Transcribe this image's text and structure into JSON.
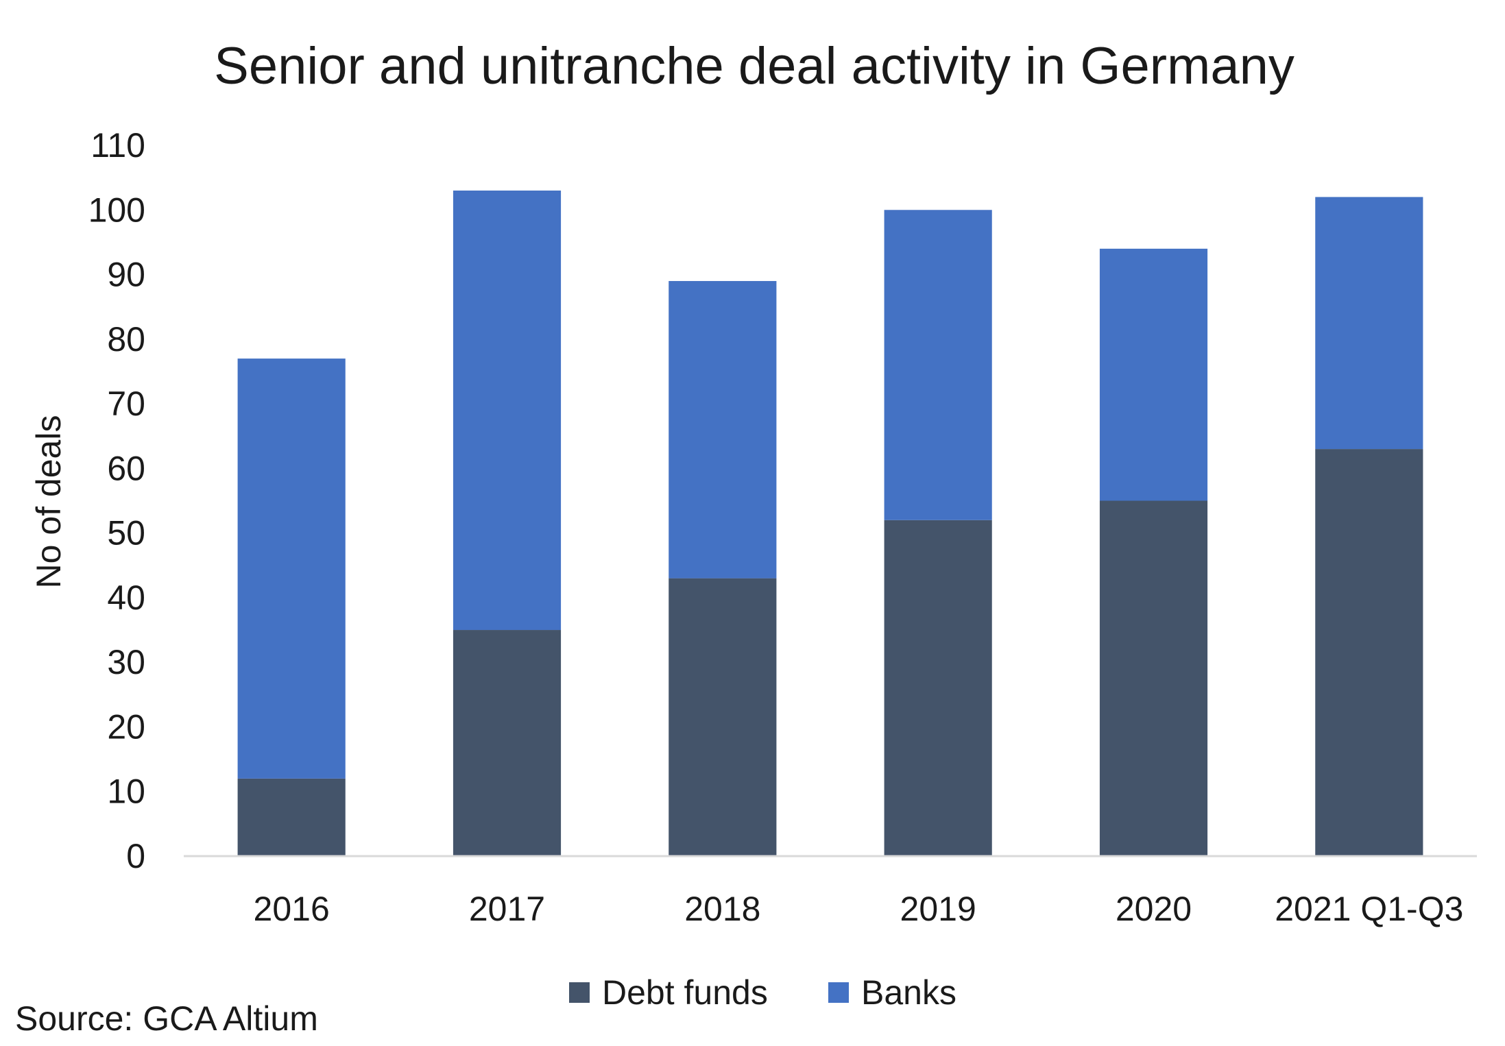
{
  "chart_data": {
    "type": "bar",
    "stacked": true,
    "title": "Senior and unitranche deal activity in Germany",
    "xlabel": "",
    "ylabel": "No of deals",
    "ylim": [
      0,
      110
    ],
    "yticks": [
      0,
      10,
      20,
      30,
      40,
      50,
      60,
      70,
      80,
      90,
      100,
      110
    ],
    "grid": false,
    "legend_position": "bottom",
    "categories": [
      "2016",
      "2017",
      "2018",
      "2019",
      "2020",
      "2021 Q1-Q3"
    ],
    "series": [
      {
        "name": "Debt funds",
        "color": "#44546A",
        "values": [
          12,
          35,
          43,
          52,
          55,
          63
        ]
      },
      {
        "name": "Banks",
        "color": "#4472C4",
        "values": [
          65,
          68,
          46,
          48,
          39,
          39
        ]
      }
    ],
    "source": "Source: GCA Altium"
  }
}
